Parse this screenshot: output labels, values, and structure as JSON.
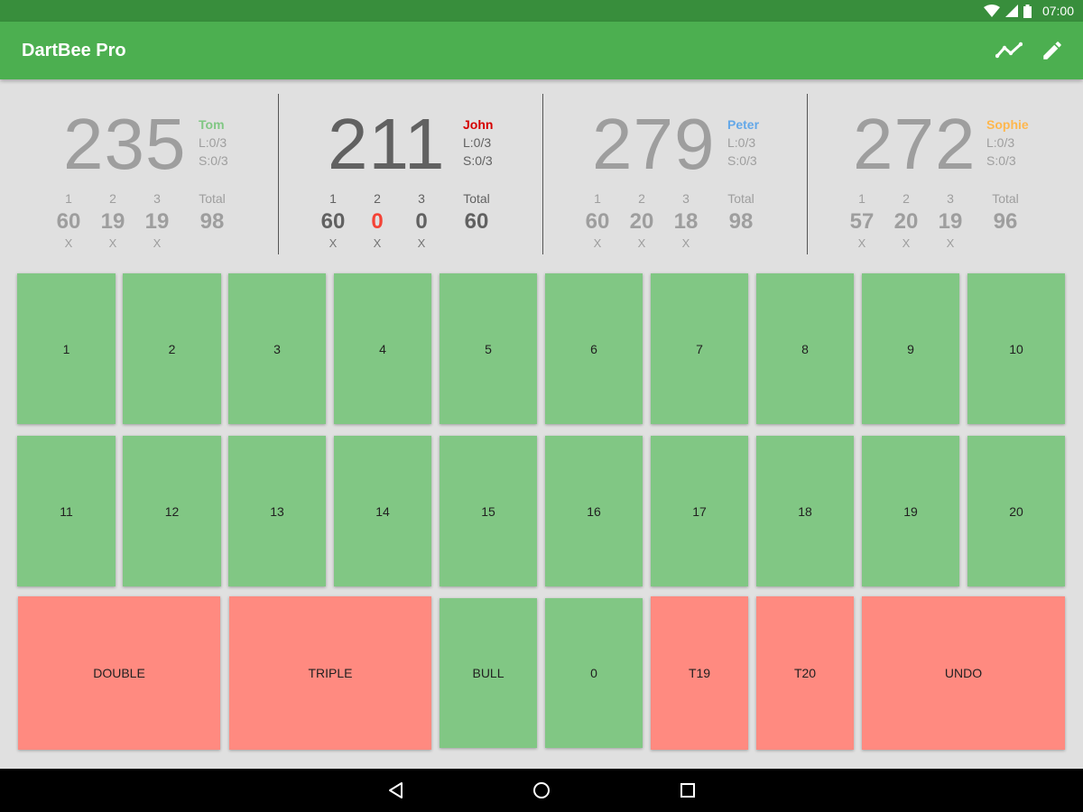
{
  "status_bar": {
    "time": "07:00"
  },
  "app": {
    "title": "DartBee Pro"
  },
  "toolbar": {
    "stats_icon": "chart-line-icon",
    "edit_icon": "pencil-icon"
  },
  "dart_headers": [
    "1",
    "2",
    "3"
  ],
  "total_label": "Total",
  "players": [
    {
      "name": "Tom",
      "color": "#81c784",
      "score": "235",
      "legs": "L:0/3",
      "sets": "S:0/3",
      "darts": [
        "60",
        "19",
        "19"
      ],
      "marks": [
        "X",
        "X",
        "X"
      ],
      "total": "98",
      "active": false
    },
    {
      "name": "John",
      "color": "#d50000",
      "score": "211",
      "legs": "L:0/3",
      "sets": "S:0/3",
      "darts": [
        "60",
        "0",
        "0"
      ],
      "marks": [
        "X",
        "X",
        "X"
      ],
      "total": "60",
      "active": true
    },
    {
      "name": "Peter",
      "color": "#64a8e8",
      "score": "279",
      "legs": "L:0/3",
      "sets": "S:0/3",
      "darts": [
        "60",
        "20",
        "18"
      ],
      "marks": [
        "X",
        "X",
        "X"
      ],
      "total": "98",
      "active": false
    },
    {
      "name": "Sophie",
      "color": "#ffb74d",
      "score": "272",
      "legs": "L:0/3",
      "sets": "S:0/3",
      "darts": [
        "57",
        "20",
        "19"
      ],
      "marks": [
        "X",
        "X",
        "X"
      ],
      "total": "96",
      "active": false
    }
  ],
  "keypad": {
    "row1": [
      "1",
      "2",
      "3",
      "4",
      "5",
      "6",
      "7",
      "8",
      "9",
      "10"
    ],
    "row2": [
      "11",
      "12",
      "13",
      "14",
      "15",
      "16",
      "17",
      "18",
      "19",
      "20"
    ],
    "double": "DOUBLE",
    "triple": "TRIPLE",
    "bull": "BULL",
    "zero": "0",
    "t19": "T19",
    "t20": "T20",
    "undo": "UNDO"
  },
  "colors": {
    "primary": "#4caf50",
    "primary_dark": "#388e3c",
    "key_green": "#81c784",
    "key_red": "#ff8a80",
    "miss": "#f44336"
  }
}
